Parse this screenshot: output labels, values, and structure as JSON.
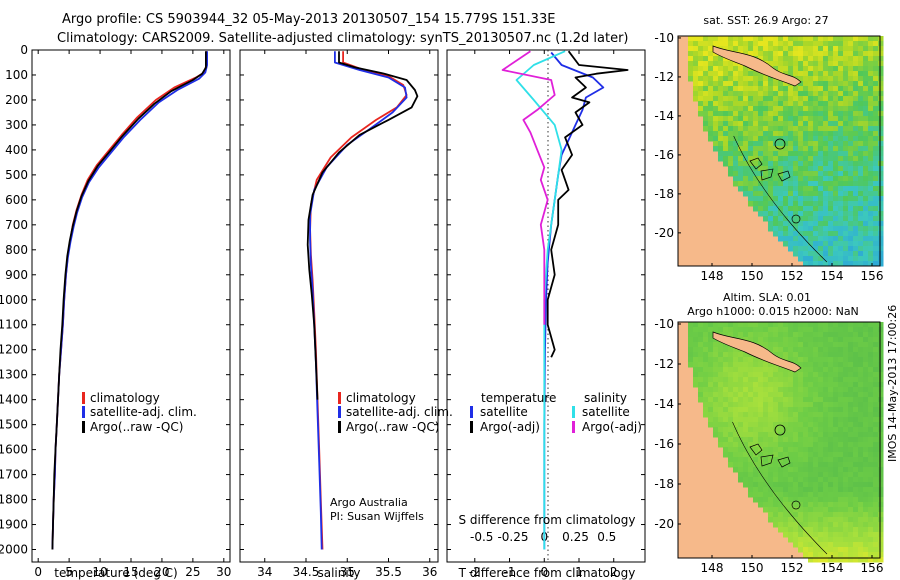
{
  "header": {
    "line1": "Argo profile: CS 5903944_32 05-May-2013 20130507_154 15.779S 151.33E",
    "line2": "Climatology: CARS2009. Satellite-adjusted climatology: synTS_20130507.nc (1.2d later)"
  },
  "footer": {
    "credit1": "Argo Australia",
    "credit2": "PI: Susan Wijffels",
    "timestamp": "IMOS 14-May-2013 17:00:26"
  },
  "colors": {
    "climatology": "#e8261f",
    "satellite": "#1f2ee6",
    "argo": "#000000",
    "sat_salinity": "#2fe0e8",
    "argo_salinity": "#e020d8",
    "land": "#f6b98a"
  },
  "chart_data": [
    {
      "id": "temperature",
      "type": "line",
      "xlabel": "temperature (deg C)",
      "xlim": [
        -1,
        31
      ],
      "ylim": [
        0,
        2050
      ],
      "xticks": [
        0,
        5,
        10,
        15,
        20,
        25,
        30
      ],
      "yticks": [
        0,
        100,
        200,
        300,
        400,
        500,
        600,
        700,
        800,
        900,
        1000,
        1100,
        1200,
        1300,
        1400,
        1500,
        1600,
        1700,
        1800,
        1900,
        2000
      ],
      "legend": [
        "climatology",
        "satellite-adj. clim.",
        "Argo(..raw -QC)"
      ],
      "series": [
        {
          "name": "climatology",
          "color": "#e8261f",
          "points": [
            [
              27.2,
              5
            ],
            [
              27.2,
              60
            ],
            [
              26.8,
              90
            ],
            [
              25.5,
              110
            ],
            [
              22,
              150
            ],
            [
              19,
              200
            ],
            [
              16,
              270
            ],
            [
              13.5,
              340
            ],
            [
              11.5,
              400
            ],
            [
              9.5,
              460
            ],
            [
              8,
              520
            ],
            [
              7,
              580
            ],
            [
              6.2,
              640
            ],
            [
              5.6,
              700
            ],
            [
              5.2,
              760
            ],
            [
              4.8,
              820
            ],
            [
              4.5,
              900
            ],
            [
              4.2,
              1000
            ],
            [
              4,
              1100
            ],
            [
              3.7,
              1200
            ],
            [
              3.4,
              1300
            ],
            [
              3.2,
              1400
            ],
            [
              3,
              1500
            ],
            [
              2.8,
              1600
            ],
            [
              2.7,
              1700
            ],
            [
              2.5,
              1800
            ],
            [
              2.4,
              1900
            ],
            [
              2.3,
              2000
            ]
          ]
        },
        {
          "name": "satellite-adj. clim.",
          "color": "#1f2ee6",
          "points": [
            [
              27.3,
              5
            ],
            [
              27.3,
              60
            ],
            [
              27,
              90
            ],
            [
              26,
              115
            ],
            [
              22.5,
              160
            ],
            [
              19.5,
              210
            ],
            [
              16.5,
              280
            ],
            [
              13.8,
              350
            ],
            [
              11.8,
              410
            ],
            [
              9.8,
              470
            ],
            [
              8.2,
              530
            ],
            [
              7.1,
              590
            ],
            [
              6.3,
              650
            ],
            [
              5.7,
              710
            ],
            [
              5.2,
              770
            ],
            [
              4.8,
              830
            ],
            [
              4.5,
              900
            ],
            [
              4.2,
              1000
            ],
            [
              4,
              1100
            ],
            [
              3.7,
              1200
            ],
            [
              3.4,
              1300
            ],
            [
              3.2,
              1400
            ],
            [
              3,
              1500
            ],
            [
              2.8,
              1600
            ],
            [
              2.7,
              1700
            ],
            [
              2.5,
              1800
            ],
            [
              2.4,
              1900
            ],
            [
              2.3,
              2000
            ]
          ]
        },
        {
          "name": "Argo(..raw -QC)",
          "color": "#000000",
          "points": [
            [
              27.1,
              5
            ],
            [
              27.1,
              70
            ],
            [
              26.5,
              95
            ],
            [
              25,
              120
            ],
            [
              21.5,
              165
            ],
            [
              18.8,
              215
            ],
            [
              16.2,
              275
            ],
            [
              13.6,
              345
            ],
            [
              11.6,
              405
            ],
            [
              9.6,
              465
            ],
            [
              8.1,
              525
            ],
            [
              7,
              585
            ],
            [
              6.2,
              645
            ],
            [
              5.6,
              705
            ],
            [
              5.1,
              765
            ],
            [
              4.7,
              825
            ],
            [
              4.4,
              900
            ],
            [
              4.1,
              1000
            ],
            [
              3.9,
              1100
            ],
            [
              3.6,
              1200
            ],
            [
              3.4,
              1300
            ],
            [
              3.2,
              1400
            ],
            [
              3,
              1500
            ],
            [
              2.8,
              1600
            ],
            [
              2.6,
              1700
            ],
            [
              2.5,
              1800
            ],
            [
              2.4,
              1900
            ],
            [
              2.3,
              2000
            ]
          ]
        }
      ]
    },
    {
      "id": "salinity",
      "type": "line",
      "xlabel": "salinity",
      "xlim": [
        33.7,
        36.1
      ],
      "ylim": [
        0,
        2050
      ],
      "xticks": [
        34,
        34.5,
        35,
        35.5,
        36
      ],
      "legend": [
        "climatology",
        "satellite-adj. clim.",
        "Argo(..raw -QC)"
      ],
      "series": [
        {
          "name": "climatology",
          "color": "#e8261f",
          "points": [
            [
              34.95,
              5
            ],
            [
              34.95,
              50
            ],
            [
              35.2,
              80
            ],
            [
              35.5,
              105
            ],
            [
              35.68,
              140
            ],
            [
              35.72,
              180
            ],
            [
              35.6,
              230
            ],
            [
              35.35,
              280
            ],
            [
              35.05,
              350
            ],
            [
              34.8,
              430
            ],
            [
              34.63,
              520
            ],
            [
              34.56,
              620
            ],
            [
              34.55,
              720
            ],
            [
              34.56,
              820
            ],
            [
              34.58,
              920
            ],
            [
              34.6,
              1050
            ],
            [
              34.62,
              1200
            ],
            [
              34.64,
              1400
            ],
            [
              34.66,
              1600
            ],
            [
              34.68,
              1800
            ],
            [
              34.7,
              2000
            ]
          ]
        },
        {
          "name": "satellite-adj. clim.",
          "color": "#1f2ee6",
          "points": [
            [
              34.85,
              5
            ],
            [
              34.85,
              50
            ],
            [
              35.15,
              80
            ],
            [
              35.5,
              110
            ],
            [
              35.7,
              150
            ],
            [
              35.72,
              190
            ],
            [
              35.55,
              250
            ],
            [
              35.3,
              310
            ],
            [
              35.0,
              380
            ],
            [
              34.75,
              470
            ],
            [
              34.6,
              560
            ],
            [
              34.55,
              660
            ],
            [
              34.55,
              760
            ],
            [
              34.56,
              860
            ],
            [
              34.58,
              960
            ],
            [
              34.6,
              1100
            ],
            [
              34.62,
              1250
            ],
            [
              34.64,
              1450
            ],
            [
              34.66,
              1650
            ],
            [
              34.68,
              1850
            ],
            [
              34.69,
              2000
            ]
          ]
        },
        {
          "name": "Argo(..raw -QC)",
          "color": "#000000",
          "points": [
            [
              34.9,
              5
            ],
            [
              34.9,
              50
            ],
            [
              35.1,
              70
            ],
            [
              35.45,
              95
            ],
            [
              35.72,
              120
            ],
            [
              35.82,
              160
            ],
            [
              35.85,
              185
            ],
            [
              35.78,
              230
            ],
            [
              35.5,
              280
            ],
            [
              35.15,
              340
            ],
            [
              34.9,
              410
            ],
            [
              34.7,
              490
            ],
            [
              34.58,
              580
            ],
            [
              34.53,
              680
            ],
            [
              34.52,
              780
            ],
            [
              34.54,
              880
            ],
            [
              34.57,
              980
            ],
            [
              34.6,
              1100
            ],
            [
              34.62,
              1250
            ],
            [
              34.64,
              1400
            ]
          ]
        }
      ]
    },
    {
      "id": "difference",
      "type": "line",
      "xlabel": "T difference from climatology",
      "x2label": "S difference from climatology",
      "xlim": [
        -2.8,
        2.9
      ],
      "ylim": [
        0,
        2050
      ],
      "xticks": [
        -2,
        -1,
        0,
        1,
        2
      ],
      "x2ticks": [
        {
          "label": "-0.5",
          "at": -1.8
        },
        {
          "label": "-0.25",
          "at": -0.9
        },
        {
          "label": "0",
          "at": 0
        },
        {
          "label": "0.25",
          "at": 0.9
        },
        {
          "label": "0.5",
          "at": 1.8
        }
      ],
      "legend_temperature": [
        "temperature",
        "satellite",
        "Argo(-adj)"
      ],
      "legend_salinity": [
        "salinity",
        "satellite",
        "Argo(-adj)"
      ],
      "series": [
        {
          "name": "temperature satellite",
          "color": "#1f2ee6",
          "points": [
            [
              0.2,
              10
            ],
            [
              0.5,
              60
            ],
            [
              1.4,
              110
            ],
            [
              1.7,
              150
            ],
            [
              1.2,
              190
            ],
            [
              1.1,
              240
            ],
            [
              0.9,
              300
            ],
            [
              0.7,
              360
            ],
            [
              0.5,
              420
            ],
            [
              0.4,
              500
            ],
            [
              0.3,
              600
            ],
            [
              0.2,
              700
            ],
            [
              0.1,
              850
            ],
            [
              0.05,
              1000
            ],
            [
              0.02,
              1200
            ],
            [
              0,
              1500
            ],
            [
              0,
              2000
            ]
          ]
        },
        {
          "name": "temperature Argo(-adj)",
          "color": "#000000",
          "points": [
            [
              0.7,
              5
            ],
            [
              1,
              60
            ],
            [
              2.4,
              80
            ],
            [
              1.5,
              95
            ],
            [
              0.9,
              110
            ],
            [
              1.2,
              150
            ],
            [
              0.8,
              190
            ],
            [
              1.3,
              210
            ],
            [
              0.9,
              250
            ],
            [
              1.1,
              300
            ],
            [
              0.6,
              350
            ],
            [
              0.8,
              420
            ],
            [
              0.5,
              480
            ],
            [
              0.7,
              560
            ],
            [
              0.4,
              600
            ],
            [
              0.4,
              700
            ],
            [
              0.2,
              800
            ],
            [
              0.3,
              900
            ],
            [
              0.1,
              1000
            ],
            [
              0.1,
              1100
            ],
            [
              0.3,
              1200
            ],
            [
              0.2,
              1230
            ]
          ]
        },
        {
          "name": "salinity satellite",
          "color": "#2fe0e8",
          "points": [
            [
              0.6,
              5
            ],
            [
              -0.3,
              60
            ],
            [
              -0.8,
              120
            ],
            [
              -0.3,
              200
            ],
            [
              0.3,
              300
            ],
            [
              0.5,
              400
            ],
            [
              0.4,
              500
            ],
            [
              0.3,
              600
            ],
            [
              0.2,
              700
            ],
            [
              0.1,
              800
            ],
            [
              0.05,
              900
            ],
            [
              0,
              1000
            ],
            [
              0,
              1500
            ],
            [
              0,
              2000
            ]
          ]
        },
        {
          "name": "salinity Argo(-adj)",
          "color": "#e020d8",
          "points": [
            [
              -0.4,
              5
            ],
            [
              -1.2,
              80
            ],
            [
              0.2,
              120
            ],
            [
              0.3,
              180
            ],
            [
              -0.2,
              240
            ],
            [
              -0.6,
              280
            ],
            [
              -0.4,
              330
            ],
            [
              -0.2,
              400
            ],
            [
              0,
              470
            ],
            [
              -0.1,
              520
            ],
            [
              0.1,
              600
            ],
            [
              -0.1,
              700
            ],
            [
              0,
              800
            ],
            [
              0,
              1000
            ],
            [
              0,
              1100
            ]
          ]
        }
      ]
    },
    {
      "id": "sst-map",
      "type": "heatmap",
      "title": "sat. SST: 26.9 Argo: 27",
      "xticks": [
        148,
        150,
        152,
        154,
        156
      ],
      "yticks": [
        -10,
        -12,
        -14,
        -16,
        -18,
        -20
      ],
      "xlim": [
        146.3,
        156.4
      ],
      "ylim": [
        -21.7,
        -9.9
      ],
      "argo_position": [
        151.33,
        -15.779
      ]
    },
    {
      "id": "sla-map",
      "type": "heatmap",
      "title1": "Altim. SLA: 0.01",
      "title2": "Argo h1000: 0.015 h2000: NaN",
      "xticks": [
        148,
        150,
        152,
        154,
        156
      ],
      "yticks": [
        -10,
        -12,
        -14,
        -16,
        -18,
        -20
      ],
      "xlim": [
        146.3,
        156.4
      ],
      "ylim": [
        -21.7,
        -9.9
      ],
      "argo_position": [
        151.33,
        -15.779
      ]
    }
  ]
}
